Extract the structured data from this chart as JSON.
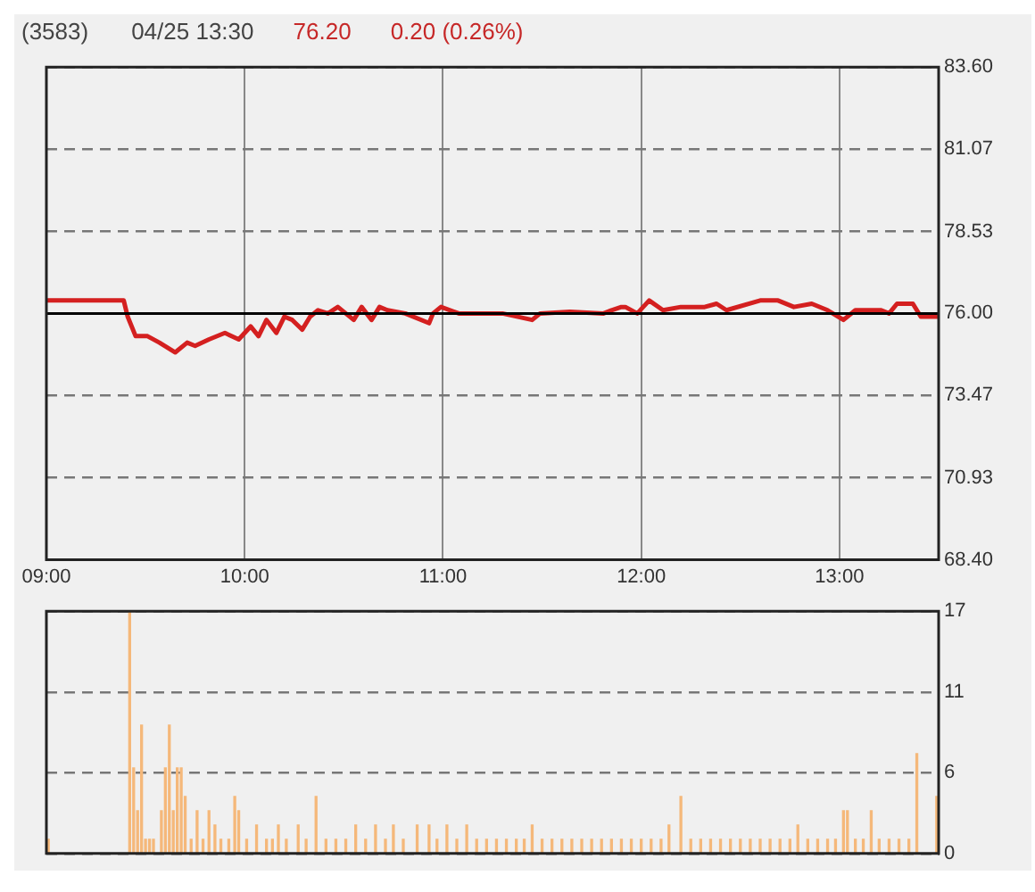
{
  "chart_data": [
    {
      "type": "line",
      "title": "(3583)",
      "annotations": [
        "04/25 13:30",
        "76.20",
        "0.20 (0.26%)"
      ],
      "x": [
        9.0,
        9.2,
        9.39,
        9.41,
        9.45,
        9.51,
        9.57,
        9.65,
        9.71,
        9.75,
        9.82,
        9.9,
        9.97,
        10.03,
        10.07,
        10.11,
        10.16,
        10.2,
        10.24,
        10.29,
        10.33,
        10.37,
        10.42,
        10.47,
        10.55,
        10.59,
        10.64,
        10.68,
        10.72,
        10.81,
        10.93,
        10.95,
        10.99,
        11.08,
        11.14,
        11.3,
        11.45,
        11.49,
        11.64,
        11.81,
        11.85,
        11.9,
        11.92,
        11.98,
        12.04,
        12.11,
        12.2,
        12.32,
        12.38,
        12.43,
        12.6,
        12.69,
        12.77,
        12.86,
        12.94,
        13.02,
        13.08,
        13.21,
        13.25,
        13.29,
        13.37,
        13.41,
        13.5
      ],
      "values": [
        76.4,
        76.4,
        76.4,
        75.9,
        75.3,
        75.3,
        75.1,
        74.8,
        75.1,
        75.0,
        75.2,
        75.4,
        75.2,
        75.6,
        75.3,
        75.8,
        75.4,
        75.9,
        75.8,
        75.5,
        75.9,
        76.1,
        76.0,
        76.2,
        75.8,
        76.2,
        75.8,
        76.2,
        76.1,
        76.0,
        75.7,
        76.0,
        76.2,
        76.0,
        76.0,
        76.0,
        75.8,
        76.0,
        76.05,
        76.0,
        76.1,
        76.2,
        76.2,
        76.0,
        76.4,
        76.1,
        76.2,
        76.2,
        76.3,
        76.1,
        76.4,
        76.4,
        76.2,
        76.3,
        76.1,
        75.8,
        76.1,
        76.1,
        76.0,
        76.3,
        76.3,
        75.9,
        75.9
      ],
      "color": "#d42020",
      "marker": "none",
      "xlim": [
        9,
        13.5
      ],
      "xticks": [
        {
          "value": 9,
          "label": "09:00"
        },
        {
          "value": 10,
          "label": "10:00"
        },
        {
          "value": 11,
          "label": "11:00"
        },
        {
          "value": 12,
          "label": "12:00"
        },
        {
          "value": 13,
          "label": "13:00"
        }
      ],
      "ylim": [
        68.4,
        83.6
      ],
      "yticks": [
        {
          "value": 68.4,
          "label": "68.40"
        },
        70.93,
        73.47,
        {
          "value": 76.0,
          "label": "76.00"
        },
        78.53,
        81.07,
        {
          "value": 83.6,
          "label": "83.60"
        }
      ],
      "grid": true,
      "ref_lines": [
        {
          "axis": "y",
          "value": 76.0,
          "color": "#000000"
        }
      ]
    },
    {
      "type": "bar",
      "x": [
        9.01,
        9.42,
        9.44,
        9.46,
        9.48,
        9.5,
        9.52,
        9.54,
        9.58,
        9.6,
        9.62,
        9.64,
        9.66,
        9.68,
        9.7,
        9.73,
        9.76,
        9.79,
        9.82,
        9.85,
        9.88,
        9.92,
        9.95,
        9.97,
        10.01,
        10.06,
        10.11,
        10.14,
        10.17,
        10.21,
        10.27,
        10.31,
        10.36,
        10.41,
        10.46,
        10.51,
        10.56,
        10.61,
        10.66,
        10.71,
        10.75,
        10.8,
        10.87,
        10.93,
        10.97,
        11.02,
        11.07,
        11.12,
        11.17,
        11.22,
        11.27,
        11.32,
        11.37,
        11.41,
        11.45,
        11.5,
        11.55,
        11.6,
        11.65,
        11.7,
        11.75,
        11.8,
        11.85,
        11.9,
        11.95,
        12.0,
        12.05,
        12.1,
        12.14,
        12.2,
        12.25,
        12.3,
        12.35,
        12.4,
        12.45,
        12.5,
        12.55,
        12.6,
        12.65,
        12.7,
        12.75,
        12.79,
        12.84,
        12.89,
        12.94,
        12.98,
        13.02,
        13.04,
        13.08,
        13.12,
        13.16,
        13.2,
        13.25,
        13.3,
        13.35,
        13.39,
        13.49
      ],
      "values": [
        1,
        17,
        6,
        3,
        9,
        1,
        1,
        1,
        3,
        6,
        9,
        3,
        6,
        6,
        4,
        1,
        3,
        1,
        3,
        2,
        1,
        1,
        4,
        3,
        1,
        2,
        1,
        1,
        2,
        1,
        2,
        1,
        4,
        1,
        1,
        1,
        2,
        1,
        2,
        1,
        2,
        1,
        2,
        2,
        1,
        2,
        1,
        2,
        1,
        1,
        1,
        1,
        1,
        1,
        2,
        1,
        1,
        1,
        1,
        1,
        1,
        1,
        1,
        1,
        1,
        1,
        1,
        1,
        2,
        4,
        1,
        1,
        1,
        1,
        1,
        1,
        1,
        1,
        1,
        1,
        1,
        2,
        1,
        1,
        1,
        1,
        3,
        3,
        1,
        1,
        3,
        1,
        1,
        1,
        1,
        7,
        4
      ],
      "color": "#f5b87a",
      "xlim": [
        9,
        13.5
      ],
      "ylim": [
        0,
        17
      ],
      "yticks": [
        0,
        {
          "value": 5.67,
          "label": "6"
        },
        {
          "value": 11.33,
          "label": "11"
        },
        17
      ],
      "grid": "y",
      "tick_labels": "y"
    }
  ]
}
